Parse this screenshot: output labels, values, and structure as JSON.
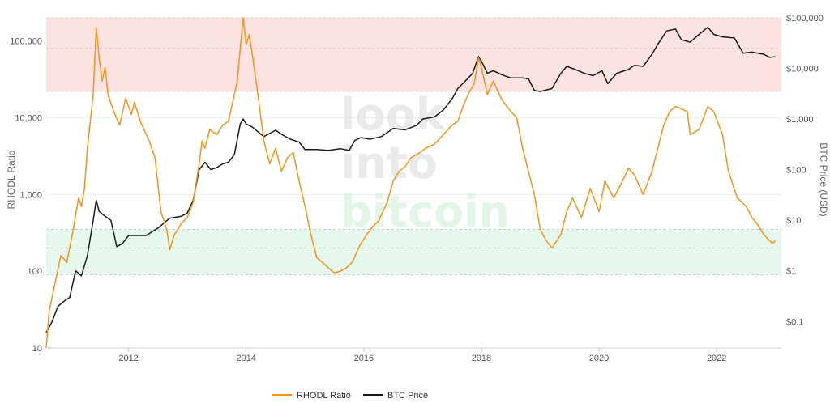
{
  "watermark": {
    "line1": "look",
    "line2": "into",
    "line3": "bitcoin"
  },
  "chart_data": {
    "type": "line",
    "title": "",
    "left_axis": {
      "label": "RHODL Ratio",
      "scale": "log",
      "range": [
        10,
        200000
      ],
      "ticks": [
        {
          "value": 10,
          "label": "10"
        },
        {
          "value": 100,
          "label": "100"
        },
        {
          "value": 1000,
          "label": "1,000"
        },
        {
          "value": 10000,
          "label": "10,000"
        },
        {
          "value": 100000,
          "label": "100,000"
        }
      ]
    },
    "right_axis": {
      "label": "BTC Price (USD)",
      "scale": "log",
      "range": [
        0.03,
        100000
      ],
      "ticks": [
        {
          "value": 0.1,
          "label": "$0.1"
        },
        {
          "value": 1,
          "label": "$1"
        },
        {
          "value": 10,
          "label": "$10"
        },
        {
          "value": 100,
          "label": "$100"
        },
        {
          "value": 1000,
          "label": "$1,000"
        },
        {
          "value": 10000,
          "label": "$10,000"
        },
        {
          "value": 100000,
          "label": "$100,000"
        }
      ]
    },
    "x_axis": {
      "range": [
        2010.6,
        2023.1
      ],
      "ticks": [
        2012,
        2014,
        2016,
        2018,
        2020,
        2022
      ]
    },
    "bands": [
      {
        "zone": "overheated",
        "from": 22000,
        "to": 200000,
        "axis": "left",
        "color": "#fde2e2",
        "dashed_lines": [
          22000,
          80000,
          200000
        ]
      },
      {
        "zone": "undervalued",
        "from": 90,
        "to": 350,
        "axis": "left",
        "color": "#e6f8ee",
        "dashed_lines": [
          90,
          200,
          350
        ]
      }
    ],
    "grid": true,
    "legend": {
      "placement": "bottom-center"
    },
    "series": [
      {
        "name": "RHODL Ratio",
        "axis": "left",
        "color": "#f7931a",
        "points": [
          [
            2010.6,
            10
          ],
          [
            2010.65,
            30
          ],
          [
            2010.75,
            70
          ],
          [
            2010.85,
            160
          ],
          [
            2010.95,
            130
          ],
          [
            2011.05,
            320
          ],
          [
            2011.15,
            900
          ],
          [
            2011.2,
            700
          ],
          [
            2011.25,
            1200
          ],
          [
            2011.3,
            4000
          ],
          [
            2011.4,
            20000
          ],
          [
            2011.45,
            150000
          ],
          [
            2011.5,
            60000
          ],
          [
            2011.55,
            30000
          ],
          [
            2011.6,
            45000
          ],
          [
            2011.65,
            20000
          ],
          [
            2011.75,
            12000
          ],
          [
            2011.85,
            8000
          ],
          [
            2011.95,
            18000
          ],
          [
            2012.0,
            14000
          ],
          [
            2012.05,
            11000
          ],
          [
            2012.1,
            16000
          ],
          [
            2012.2,
            9000
          ],
          [
            2012.35,
            5000
          ],
          [
            2012.45,
            3000
          ],
          [
            2012.55,
            600
          ],
          [
            2012.65,
            350
          ],
          [
            2012.7,
            190
          ],
          [
            2012.78,
            300
          ],
          [
            2012.9,
            420
          ],
          [
            2013.0,
            500
          ],
          [
            2013.1,
            800
          ],
          [
            2013.2,
            2500
          ],
          [
            2013.25,
            5000
          ],
          [
            2013.3,
            4000
          ],
          [
            2013.38,
            7000
          ],
          [
            2013.5,
            6000
          ],
          [
            2013.6,
            8000
          ],
          [
            2013.7,
            9000
          ],
          [
            2013.85,
            30000
          ],
          [
            2013.9,
            80000
          ],
          [
            2013.95,
            200000
          ],
          [
            2014.0,
            90000
          ],
          [
            2014.05,
            120000
          ],
          [
            2014.1,
            70000
          ],
          [
            2014.2,
            20000
          ],
          [
            2014.3,
            5000
          ],
          [
            2014.4,
            2500
          ],
          [
            2014.5,
            4000
          ],
          [
            2014.6,
            2000
          ],
          [
            2014.7,
            3000
          ],
          [
            2014.8,
            3500
          ],
          [
            2014.9,
            1500
          ],
          [
            2015.0,
            700
          ],
          [
            2015.1,
            300
          ],
          [
            2015.2,
            150
          ],
          [
            2015.3,
            130
          ],
          [
            2015.4,
            110
          ],
          [
            2015.5,
            95
          ],
          [
            2015.6,
            100
          ],
          [
            2015.7,
            110
          ],
          [
            2015.8,
            130
          ],
          [
            2015.95,
            230
          ],
          [
            2016.05,
            300
          ],
          [
            2016.15,
            380
          ],
          [
            2016.25,
            450
          ],
          [
            2016.4,
            800
          ],
          [
            2016.5,
            1500
          ],
          [
            2016.6,
            2000
          ],
          [
            2016.7,
            2300
          ],
          [
            2016.8,
            3000
          ],
          [
            2016.95,
            3500
          ],
          [
            2017.05,
            4000
          ],
          [
            2017.2,
            4500
          ],
          [
            2017.35,
            6000
          ],
          [
            2017.5,
            8000
          ],
          [
            2017.6,
            9000
          ],
          [
            2017.7,
            15000
          ],
          [
            2017.8,
            22000
          ],
          [
            2017.88,
            28000
          ],
          [
            2017.95,
            60000
          ],
          [
            2018.0,
            45000
          ],
          [
            2018.1,
            20000
          ],
          [
            2018.2,
            30000
          ],
          [
            2018.35,
            17000
          ],
          [
            2018.5,
            12000
          ],
          [
            2018.6,
            10000
          ],
          [
            2018.7,
            4000
          ],
          [
            2018.8,
            2000
          ],
          [
            2018.9,
            1000
          ],
          [
            2019.0,
            350
          ],
          [
            2019.1,
            250
          ],
          [
            2019.2,
            200
          ],
          [
            2019.35,
            300
          ],
          [
            2019.45,
            600
          ],
          [
            2019.55,
            900
          ],
          [
            2019.7,
            500
          ],
          [
            2019.85,
            1200
          ],
          [
            2020.0,
            600
          ],
          [
            2020.1,
            1500
          ],
          [
            2020.25,
            900
          ],
          [
            2020.4,
            1500
          ],
          [
            2020.5,
            2200
          ],
          [
            2020.6,
            1800
          ],
          [
            2020.75,
            1000
          ],
          [
            2020.9,
            2000
          ],
          [
            2021.0,
            4000
          ],
          [
            2021.1,
            8000
          ],
          [
            2021.2,
            12000
          ],
          [
            2021.3,
            14000
          ],
          [
            2021.4,
            13000
          ],
          [
            2021.5,
            12000
          ],
          [
            2021.55,
            6000
          ],
          [
            2021.7,
            7000
          ],
          [
            2021.85,
            14000
          ],
          [
            2021.95,
            12000
          ],
          [
            2022.1,
            6000
          ],
          [
            2022.2,
            2000
          ],
          [
            2022.35,
            900
          ],
          [
            2022.5,
            700
          ],
          [
            2022.6,
            500
          ],
          [
            2022.7,
            400
          ],
          [
            2022.8,
            300
          ],
          [
            2022.9,
            250
          ],
          [
            2022.95,
            230
          ],
          [
            2023.0,
            250
          ]
        ]
      },
      {
        "name": "BTC Price",
        "axis": "right",
        "color": "#1a1a1a",
        "points": [
          [
            2010.6,
            0.06
          ],
          [
            2010.7,
            0.1
          ],
          [
            2010.8,
            0.2
          ],
          [
            2010.9,
            0.25
          ],
          [
            2011.0,
            0.3
          ],
          [
            2011.1,
            1
          ],
          [
            2011.2,
            0.8
          ],
          [
            2011.3,
            2
          ],
          [
            2011.4,
            10
          ],
          [
            2011.45,
            25
          ],
          [
            2011.5,
            15
          ],
          [
            2011.6,
            12
          ],
          [
            2011.7,
            10
          ],
          [
            2011.8,
            3
          ],
          [
            2011.9,
            3.5
          ],
          [
            2012.0,
            5
          ],
          [
            2012.1,
            5
          ],
          [
            2012.3,
            5
          ],
          [
            2012.5,
            7
          ],
          [
            2012.7,
            11
          ],
          [
            2012.9,
            12
          ],
          [
            2013.0,
            14
          ],
          [
            2013.1,
            25
          ],
          [
            2013.2,
            100
          ],
          [
            2013.3,
            140
          ],
          [
            2013.4,
            100
          ],
          [
            2013.5,
            110
          ],
          [
            2013.6,
            130
          ],
          [
            2013.7,
            140
          ],
          [
            2013.8,
            200
          ],
          [
            2013.9,
            800
          ],
          [
            2013.95,
            1000
          ],
          [
            2014.0,
            800
          ],
          [
            2014.1,
            700
          ],
          [
            2014.3,
            450
          ],
          [
            2014.5,
            600
          ],
          [
            2014.6,
            500
          ],
          [
            2014.75,
            400
          ],
          [
            2014.9,
            350
          ],
          [
            2015.0,
            250
          ],
          [
            2015.2,
            250
          ],
          [
            2015.4,
            240
          ],
          [
            2015.6,
            260
          ],
          [
            2015.75,
            240
          ],
          [
            2015.85,
            380
          ],
          [
            2015.95,
            430
          ],
          [
            2016.1,
            400
          ],
          [
            2016.3,
            450
          ],
          [
            2016.5,
            650
          ],
          [
            2016.7,
            610
          ],
          [
            2016.9,
            750
          ],
          [
            2017.0,
            1000
          ],
          [
            2017.2,
            1100
          ],
          [
            2017.35,
            1500
          ],
          [
            2017.5,
            2500
          ],
          [
            2017.6,
            4000
          ],
          [
            2017.75,
            6000
          ],
          [
            2017.85,
            8000
          ],
          [
            2017.95,
            17000
          ],
          [
            2018.0,
            14000
          ],
          [
            2018.1,
            8000
          ],
          [
            2018.2,
            9000
          ],
          [
            2018.35,
            7500
          ],
          [
            2018.5,
            6500
          ],
          [
            2018.7,
            6500
          ],
          [
            2018.8,
            6200
          ],
          [
            2018.9,
            3700
          ],
          [
            2019.0,
            3500
          ],
          [
            2019.2,
            4000
          ],
          [
            2019.35,
            8000
          ],
          [
            2019.45,
            11000
          ],
          [
            2019.6,
            9500
          ],
          [
            2019.75,
            8000
          ],
          [
            2019.9,
            7200
          ],
          [
            2020.05,
            9000
          ],
          [
            2020.15,
            5000
          ],
          [
            2020.3,
            8000
          ],
          [
            2020.5,
            9500
          ],
          [
            2020.6,
            11500
          ],
          [
            2020.75,
            11000
          ],
          [
            2020.9,
            19000
          ],
          [
            2021.0,
            30000
          ],
          [
            2021.15,
            55000
          ],
          [
            2021.3,
            60000
          ],
          [
            2021.4,
            37000
          ],
          [
            2021.55,
            33000
          ],
          [
            2021.7,
            47000
          ],
          [
            2021.85,
            65000
          ],
          [
            2021.95,
            47000
          ],
          [
            2022.1,
            42000
          ],
          [
            2022.3,
            40000
          ],
          [
            2022.45,
            20000
          ],
          [
            2022.6,
            21000
          ],
          [
            2022.8,
            19000
          ],
          [
            2022.9,
            16500
          ],
          [
            2023.0,
            17000
          ]
        ]
      }
    ]
  }
}
